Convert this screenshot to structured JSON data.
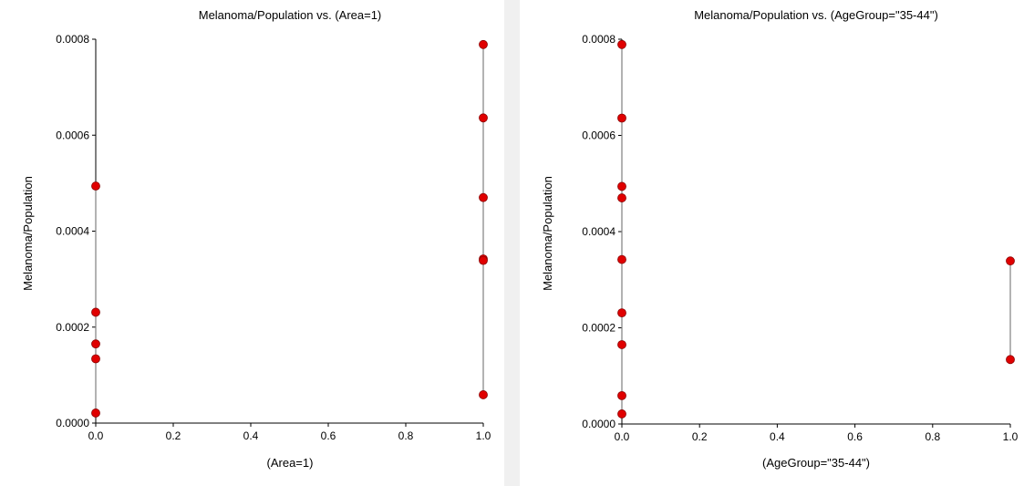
{
  "colors": {
    "point": "#e00000",
    "point_edge": "#8b0000",
    "connector": "#808080",
    "background": "#ffffff",
    "gap": "#f0f0f0"
  },
  "chart_data": [
    {
      "type": "scatter",
      "title": "Melanoma/Population vs. (Area=1)",
      "xlabel": "(Area=1)",
      "ylabel": "Melanoma/Population",
      "xlim": [
        0,
        1
      ],
      "ylim": [
        0,
        0.0008
      ],
      "xticks": [
        "0.0",
        "0.2",
        "0.4",
        "0.6",
        "0.8",
        "1.0"
      ],
      "yticks": [
        "0.0000",
        "0.0002",
        "0.0004",
        "0.0006",
        "0.0008"
      ],
      "grid": false,
      "series": [
        {
          "x": [
            0,
            0,
            0,
            0,
            0,
            1,
            1,
            1,
            1,
            1,
            1
          ],
          "y": [
            0.000494,
            0.000231,
            0.000165,
            0.000134,
            2.1e-05,
            0.000789,
            0.000636,
            0.00047,
            0.000342,
            0.000339,
            5.9e-05
          ]
        }
      ]
    },
    {
      "type": "scatter",
      "title": "Melanoma/Population vs. (AgeGroup=\"35-44\")",
      "xlabel": "(AgeGroup=\"35-44\")",
      "ylabel": "Melanoma/Population",
      "xlim": [
        0,
        1
      ],
      "ylim": [
        0,
        0.0008
      ],
      "xticks": [
        "0.0",
        "0.2",
        "0.4",
        "0.6",
        "0.8",
        "1.0"
      ],
      "yticks": [
        "0.0000",
        "0.0002",
        "0.0004",
        "0.0006",
        "0.0008"
      ],
      "grid": false,
      "series": [
        {
          "x": [
            0,
            0,
            0,
            0,
            0,
            0,
            0,
            0,
            0,
            1,
            1
          ],
          "y": [
            0.000789,
            0.000636,
            0.000494,
            0.00047,
            0.000342,
            0.000231,
            0.000165,
            5.9e-05,
            2.1e-05,
            0.000339,
            0.000134
          ]
        }
      ]
    }
  ]
}
